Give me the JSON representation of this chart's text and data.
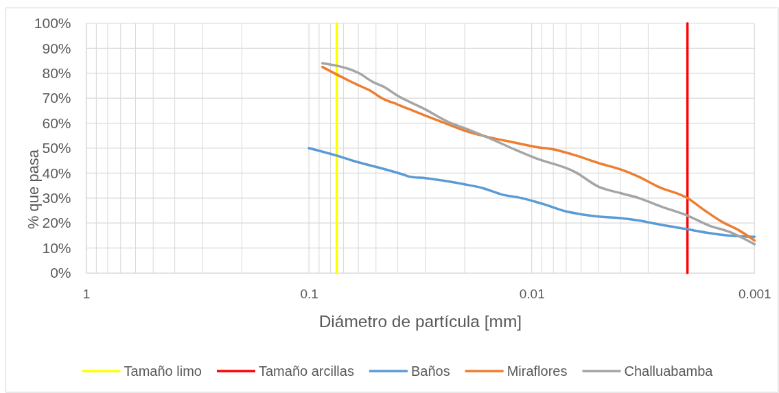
{
  "chart_data": {
    "type": "line",
    "xlabel": "Diámetro de partícula [mm]",
    "ylabel": "% que pasa",
    "log": "x",
    "xlim": [
      1,
      0.001
    ],
    "xticks": [
      1,
      0.1,
      0.01,
      0.001
    ],
    "ylim": [
      0,
      100
    ],
    "yticks": [
      {
        "value": 0,
        "label": "0%"
      },
      {
        "value": 10,
        "label": "10%"
      },
      {
        "value": 20,
        "label": "20%"
      },
      {
        "value": 30,
        "label": "30%"
      },
      {
        "value": 40,
        "label": "40%"
      },
      {
        "value": 50,
        "label": "50%"
      },
      {
        "value": 60,
        "label": "60%"
      },
      {
        "value": 70,
        "label": "70%"
      },
      {
        "value": 80,
        "label": "80%"
      },
      {
        "value": 90,
        "label": "90%"
      },
      {
        "value": 100,
        "label": "100%"
      }
    ],
    "grid": true,
    "legend": "bottom",
    "series": [
      {
        "name": "Tamaño limo",
        "color": "#ffff00",
        "x": [
          0.075,
          0.075
        ],
        "values": [
          0,
          100
        ]
      },
      {
        "name": "Tamaño arcillas",
        "color": "#ff0000",
        "x": [
          0.002,
          0.002
        ],
        "values": [
          0,
          100
        ]
      },
      {
        "name": "Baños",
        "color": "#5b9bd5",
        "x": [
          0.1,
          0.075,
          0.061,
          0.05,
          0.038,
          0.035,
          0.03,
          0.025,
          0.02,
          0.0166,
          0.0137,
          0.0111,
          0.0096,
          0.0088,
          0.0069,
          0.006,
          0.0049,
          0.004,
          0.0033,
          0.0027,
          0.002,
          0.0016,
          0.0013,
          0.001
        ],
        "values": [
          50,
          47,
          44.5,
          42.5,
          39.5,
          38.5,
          38,
          37,
          35.5,
          34,
          31.5,
          30,
          28.5,
          27.5,
          24.5,
          23.5,
          22.5,
          22,
          21,
          19.5,
          17.5,
          16,
          15,
          14.5
        ]
      },
      {
        "name": "Miraflores",
        "color": "#ed7d31",
        "x": [
          0.087,
          0.075,
          0.061,
          0.053,
          0.047,
          0.04,
          0.03,
          0.0237,
          0.02,
          0.0158,
          0.0116,
          0.0096,
          0.008,
          0.0063,
          0.005,
          0.004,
          0.0033,
          0.0027,
          0.002,
          0.00167,
          0.0014,
          0.00117,
          0.001
        ],
        "values": [
          82.5,
          79.5,
          75.5,
          73,
          70,
          67.5,
          63,
          59.5,
          57,
          54.5,
          52,
          50.5,
          49.5,
          47,
          44,
          41.5,
          38.5,
          34.5,
          30,
          25,
          20.5,
          17,
          13
        ]
      },
      {
        "name": "Challuabamba",
        "color": "#a5a5a5",
        "x": [
          0.087,
          0.075,
          0.065,
          0.0595,
          0.0516,
          0.046,
          0.04,
          0.03,
          0.0237,
          0.02,
          0.0155,
          0.0116,
          0.0096,
          0.0064,
          0.005,
          0.004,
          0.0033,
          0.0026,
          0.002,
          0.0016,
          0.0013,
          0.001
        ],
        "values": [
          84,
          83,
          81.5,
          80,
          76.5,
          74.5,
          71,
          65.5,
          60.5,
          58,
          54,
          49,
          46,
          40.5,
          34.5,
          32,
          30,
          26.5,
          23,
          19,
          16.5,
          11.5
        ]
      }
    ]
  }
}
